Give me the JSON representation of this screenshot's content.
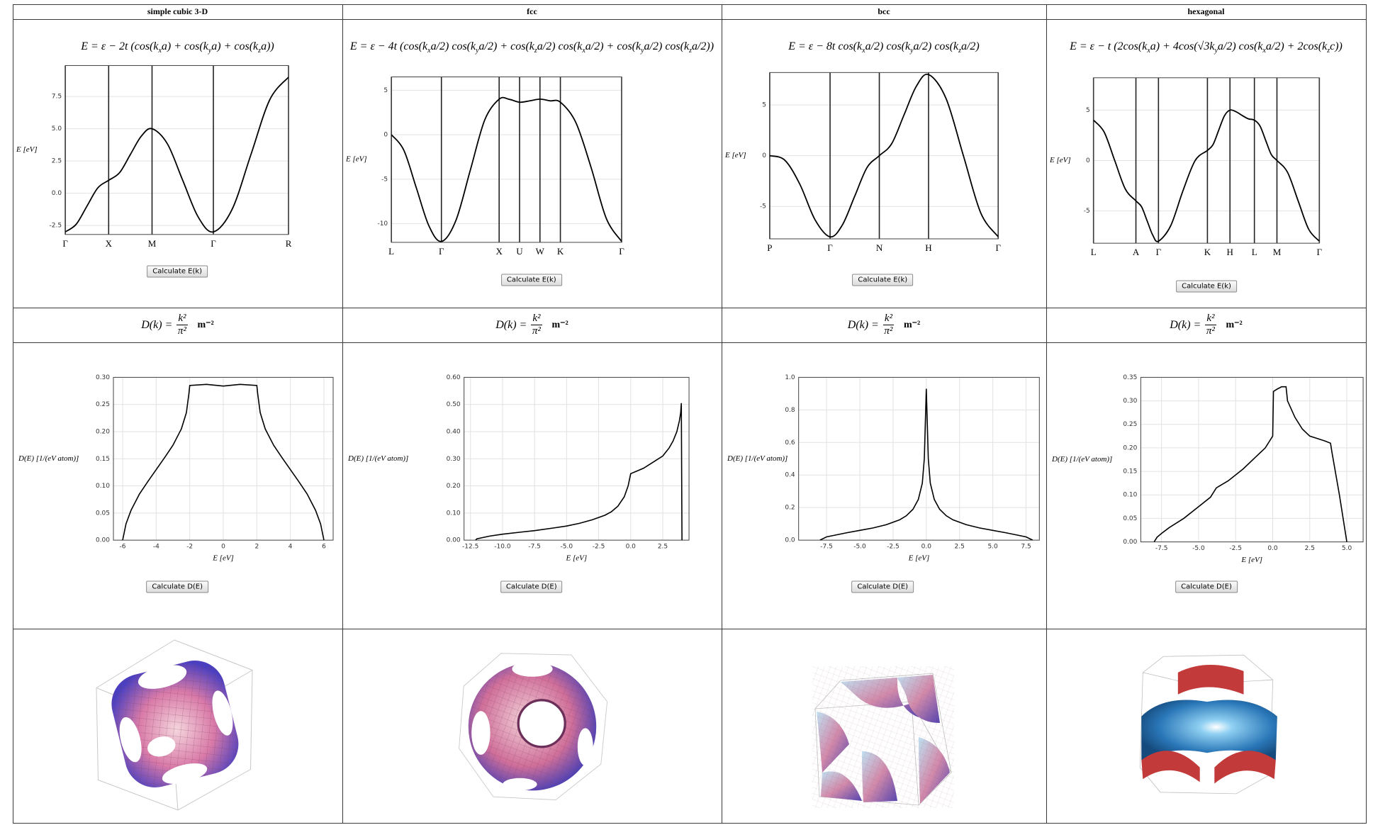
{
  "columns": [
    {
      "header": "simple cubic 3-D",
      "dispersion_formula": "E = ε − 2t (cos(k_xa) + cos(k_ya) + cos(k_za))",
      "dispersion": {
        "type": "line",
        "ylabel": "E [eV]",
        "color": "#000000",
        "grid": true,
        "x": [
          0,
          0.25,
          0.5,
          0.75,
          1,
          1.25,
          1.5,
          1.75,
          2,
          2.354,
          2.707,
          3.061,
          3.414,
          3.847,
          4.28,
          4.713,
          5.146
        ],
        "values": [
          -3,
          -2.414,
          -1,
          0.414,
          1,
          1.586,
          3,
          4.414,
          5,
          3.828,
          1,
          -1.828,
          -3,
          -1.243,
          3,
          7.243,
          9
        ],
        "xlim": [
          0,
          5.146
        ],
        "ylim": [
          -3.2,
          9.9
        ],
        "xticks": [
          {
            "value": 0,
            "label": "Γ"
          },
          {
            "value": 1,
            "label": "X"
          },
          {
            "value": 2,
            "label": "M"
          },
          {
            "value": 3.414,
            "label": "Γ"
          },
          {
            "value": 5.146,
            "label": "R"
          }
        ],
        "yticks": [
          -2.5,
          {
            "value": 0,
            "label": "0.0"
          },
          2.5,
          {
            "value": 5,
            "label": "5.0"
          },
          7.5
        ]
      },
      "dispersion_button": "Calculate E(k)",
      "dos_formula": {
        "lhs": "D(k) =",
        "numerator": "k²",
        "denominator": "π²",
        "unit": "m⁻²"
      },
      "dos": {
        "type": "line",
        "xlabel": "E [eV]",
        "ylabel": "D(E) [1/(eV atom)]",
        "color": "#000000",
        "grid": true,
        "x": [
          -6,
          -5.8,
          -5.5,
          -5,
          -4.5,
          -4,
          -3.5,
          -3,
          -2.5,
          -2.2,
          -2.05,
          -2,
          -1,
          0,
          1,
          2,
          2.05,
          2.2,
          2.5,
          3,
          3.5,
          4,
          4.5,
          5,
          5.5,
          5.8,
          6
        ],
        "values": [
          0,
          0.03,
          0.055,
          0.085,
          0.108,
          0.13,
          0.152,
          0.175,
          0.205,
          0.235,
          0.27,
          0.285,
          0.287,
          0.284,
          0.287,
          0.285,
          0.27,
          0.235,
          0.205,
          0.175,
          0.152,
          0.13,
          0.108,
          0.085,
          0.055,
          0.03,
          0
        ],
        "xlim": [
          -6.55,
          6.55
        ],
        "ylim": [
          0,
          0.3
        ],
        "xticks": [
          -6,
          -4,
          -2,
          0,
          2,
          4,
          6
        ],
        "yticks": [
          {
            "value": 0,
            "label": "0.00"
          },
          0.05,
          {
            "value": 0.1,
            "label": "0.10"
          },
          0.15,
          {
            "value": 0.2,
            "label": "0.20"
          },
          0.25,
          {
            "value": 0.3,
            "label": "0.30"
          }
        ]
      },
      "dos_button": "Calculate D(E)"
    },
    {
      "header": "fcc",
      "dispersion_formula": "E = ε − 4t (cos(k_xa/2) cos(k_ya/2) + cos(k_za/2) cos(k_xa/2) + cos(k_ya/2) cos(k_za/2))",
      "dispersion": {
        "type": "line",
        "ylabel": "E [eV]",
        "color": "#000000",
        "grid": true,
        "x": [
          0,
          1.36,
          2.72,
          4.08,
          5.44,
          7.01,
          8.58,
          10.15,
          11.72,
          12.83,
          13.94,
          15.05,
          16.16,
          17.27,
          18.38,
          20.045,
          21.71,
          23.375,
          25.04
        ],
        "values": [
          0,
          -1.757,
          -6,
          -10.24,
          -12,
          -9.657,
          -4,
          1.657,
          4,
          3.976,
          3.657,
          3.812,
          4,
          3.812,
          3.657,
          1.408,
          -3.647,
          -9.418,
          -12
        ],
        "xlim": [
          0,
          25.04
        ],
        "ylim": [
          -12.1,
          6.5
        ],
        "xticks": [
          {
            "value": 0,
            "label": "L"
          },
          {
            "value": 5.44,
            "label": "Γ"
          },
          {
            "value": 11.72,
            "label": "X"
          },
          {
            "value": 13.94,
            "label": "U"
          },
          {
            "value": 16.16,
            "label": "W"
          },
          {
            "value": 18.38,
            "label": "K"
          },
          {
            "value": 25.04,
            "label": "Γ"
          }
        ],
        "yticks": [
          5,
          0,
          -5,
          -10
        ]
      },
      "dispersion_button": "Calculate E(k)",
      "dos_formula": {
        "lhs": "D(k) =",
        "numerator": "k²",
        "denominator": "π²",
        "unit": "m⁻²"
      },
      "dos": {
        "type": "line",
        "xlabel": "E [eV]",
        "ylabel": "D(E) [1/(eV atom)]",
        "color": "#000000",
        "grid": true,
        "x": [
          -12.1,
          -12,
          -11,
          -10,
          -8.5,
          -7.5,
          -6,
          -5,
          -4,
          -3,
          -2,
          -1.5,
          -1,
          -0.5,
          -0.2,
          0,
          0.5,
          1,
          1.5,
          2,
          2.5,
          3,
          3.3,
          3.6,
          3.8,
          3.9,
          3.95,
          4
        ],
        "values": [
          0,
          0.005,
          0.015,
          0.022,
          0.03,
          0.035,
          0.045,
          0.052,
          0.062,
          0.075,
          0.092,
          0.105,
          0.125,
          0.16,
          0.2,
          0.245,
          0.255,
          0.265,
          0.28,
          0.295,
          0.31,
          0.34,
          0.365,
          0.4,
          0.44,
          0.47,
          0.505,
          0
        ],
        "xlim": [
          -13,
          4.55
        ],
        "ylim": [
          0,
          0.6
        ],
        "xticks": [
          -12.5,
          {
            "value": -10,
            "label": "-10.0"
          },
          -7.5,
          {
            "value": -5,
            "label": "-5.0"
          },
          -2.5,
          {
            "value": 0,
            "label": "0.0"
          },
          2.5
        ],
        "yticks": [
          {
            "value": 0,
            "label": "0.00"
          },
          {
            "value": 0.1,
            "label": "0.10"
          },
          {
            "value": 0.2,
            "label": "0.20"
          },
          {
            "value": 0.3,
            "label": "0.30"
          },
          {
            "value": 0.4,
            "label": "0.40"
          },
          {
            "value": 0.5,
            "label": "0.50"
          },
          {
            "value": 0.6,
            "label": "0.60"
          }
        ]
      },
      "dos_button": "Calculate D(E)"
    },
    {
      "header": "bcc",
      "dispersion_formula": "E = ε − 8t cos(k_xa/2) cos(k_ya/2) cos(k_za/2)",
      "dispersion": {
        "type": "line",
        "ylabel": "E [eV]",
        "color": "#000000",
        "grid": true,
        "x": [
          0,
          1.36,
          2.72,
          4.08,
          5.44,
          6.55,
          7.66,
          8.77,
          9.88,
          10.99,
          12.1,
          13.21,
          14.32,
          15.89,
          17.46,
          19.03,
          20.6
        ],
        "values": [
          0,
          -0.448,
          -2.828,
          -6.309,
          -8,
          -6.829,
          -4,
          -1.171,
          0,
          1.172,
          4,
          6.828,
          8,
          5.657,
          0,
          -5.657,
          -8
        ],
        "xlim": [
          0,
          20.6
        ],
        "ylim": [
          -8.2,
          8.2
        ],
        "xticks": [
          {
            "value": 0,
            "label": "P"
          },
          {
            "value": 5.44,
            "label": "Γ"
          },
          {
            "value": 9.88,
            "label": "N"
          },
          {
            "value": 14.32,
            "label": "H"
          },
          {
            "value": 20.6,
            "label": "Γ"
          }
        ],
        "yticks": [
          5,
          0,
          -5
        ]
      },
      "dispersion_button": "Calculate E(k)",
      "dos_formula": {
        "lhs": "D(k) =",
        "numerator": "k²",
        "denominator": "π²",
        "unit": "m⁻²"
      },
      "dos": {
        "type": "line",
        "xlabel": "E [eV]",
        "ylabel": "D(E) [1/(eV atom)]",
        "color": "#000000",
        "grid": true,
        "x": [
          -8,
          -7.5,
          -6,
          -5,
          -4,
          -3,
          -2,
          -1.5,
          -1,
          -0.6,
          -0.3,
          -0.15,
          0,
          0.15,
          0.3,
          0.6,
          1,
          1.5,
          2,
          3,
          4,
          5,
          6,
          7.5,
          8
        ],
        "values": [
          0,
          0.02,
          0.045,
          0.06,
          0.075,
          0.095,
          0.125,
          0.15,
          0.19,
          0.25,
          0.35,
          0.5,
          0.93,
          0.5,
          0.35,
          0.25,
          0.19,
          0.15,
          0.125,
          0.095,
          0.075,
          0.06,
          0.045,
          0.02,
          0
        ],
        "xlim": [
          -9.6,
          8.5
        ],
        "ylim": [
          0,
          1
        ],
        "xticks": [
          -7.5,
          {
            "value": -5,
            "label": "-5.0"
          },
          -2.5,
          {
            "value": 0,
            "label": "0.0"
          },
          2.5,
          {
            "value": 5,
            "label": "5.0"
          },
          7.5
        ],
        "yticks": [
          {
            "value": 0,
            "label": "0.0"
          },
          0.2,
          0.4,
          0.6,
          0.8,
          {
            "value": 1,
            "label": "1.0"
          }
        ]
      },
      "dos_button": "Calculate D(E)"
    },
    {
      "header": "hexagonal",
      "dispersion_formula": "E = ε − t (2cos(k_xa) + 4cos(√3k_ya/2) cos(k_xa/2) + 2cos(k_zc))",
      "dispersion": {
        "type": "line",
        "ylabel": "E [eV]",
        "color": "#000000",
        "grid": true,
        "x": [
          0,
          0.9075,
          1.815,
          2.7225,
          3.63,
          4.1125,
          4.595,
          5.0775,
          5.56,
          6.6075,
          7.655,
          8.7025,
          9.75,
          10.2325,
          10.715,
          11.1975,
          11.68,
          12.2025,
          12.725,
          13.2475,
          13.77,
          14.2525,
          14.735,
          15.2175,
          15.7,
          16.6075,
          17.515,
          18.4225,
          19.33
        ],
        "values": [
          4,
          2.828,
          0,
          -2.828,
          -4,
          -4.586,
          -6,
          -7.414,
          -8,
          -6.464,
          -3,
          0,
          1,
          1.586,
          3,
          4.414,
          5,
          4.828,
          4.464,
          4.132,
          4,
          3.414,
          2,
          0.586,
          0,
          -1.172,
          -4,
          -6.828,
          -8
        ],
        "xlim": [
          0,
          19.33
        ],
        "ylim": [
          -8.2,
          8.2
        ],
        "xticks": [
          {
            "value": 0,
            "label": "L"
          },
          {
            "value": 3.63,
            "label": "A"
          },
          {
            "value": 5.56,
            "label": "Γ"
          },
          {
            "value": 9.75,
            "label": "K"
          },
          {
            "value": 11.68,
            "label": "H"
          },
          {
            "value": 13.77,
            "label": "L"
          },
          {
            "value": 15.7,
            "label": "M"
          },
          {
            "value": 19.33,
            "label": "Γ"
          }
        ],
        "yticks": [
          5,
          0,
          -5
        ]
      },
      "dispersion_button": "Calculate E(k)",
      "dos_formula": {
        "lhs": "D(k) =",
        "numerator": "k²",
        "denominator": "π²",
        "unit": "m⁻²"
      },
      "dos": {
        "type": "line",
        "xlabel": "E [eV]",
        "ylabel": "D(E) [1/(eV atom)]",
        "color": "#000000",
        "grid": true,
        "x": [
          -8,
          -7.8,
          -7.5,
          -7,
          -6,
          -5,
          -4.2,
          -4,
          -3.8,
          -3,
          -2,
          -1,
          -0.5,
          0,
          0.05,
          0.3,
          0.6,
          0.9,
          1,
          1.5,
          2,
          2.5,
          3,
          3.5,
          3.9,
          4,
          4.5,
          5
        ],
        "values": [
          0,
          0.01,
          0.018,
          0.03,
          0.05,
          0.075,
          0.095,
          0.105,
          0.115,
          0.13,
          0.155,
          0.185,
          0.2,
          0.225,
          0.32,
          0.325,
          0.33,
          0.33,
          0.3,
          0.265,
          0.24,
          0.225,
          0.22,
          0.215,
          0.21,
          0.19,
          0.1,
          0
        ],
        "xlim": [
          -8.9,
          6.1
        ],
        "ylim": [
          0,
          0.35
        ],
        "xticks": [
          -7.5,
          {
            "value": -5,
            "label": "-5.0"
          },
          -2.5,
          {
            "value": 0,
            "label": "0.0"
          },
          2.5,
          {
            "value": 5,
            "label": "5.0"
          }
        ],
        "yticks": [
          {
            "value": 0,
            "label": "0.00"
          },
          0.05,
          {
            "value": 0.1,
            "label": "0.10"
          },
          0.15,
          {
            "value": 0.2,
            "label": "0.20"
          },
          0.25,
          {
            "value": 0.3,
            "label": "0.30"
          },
          0.35
        ]
      },
      "dos_button": "Calculate D(E)"
    }
  ]
}
